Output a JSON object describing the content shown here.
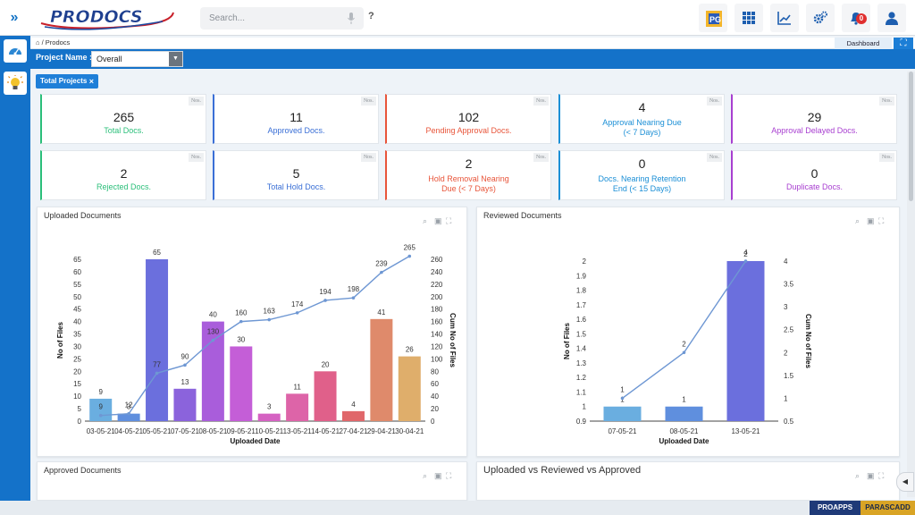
{
  "app": {
    "logo_text": "PRODOCS"
  },
  "search": {
    "placeholder": "Search..."
  },
  "help_label": "?",
  "notifications": {
    "count": "0"
  },
  "breadcrumb": {
    "text": "/ Prodocs"
  },
  "dashboard_label": "Dashboard",
  "project": {
    "label": "Project Name :",
    "selected": "Overall"
  },
  "filter_chip": {
    "label": "Total Projects",
    "close": "×"
  },
  "cards": [
    {
      "value": "265",
      "label": "Total Docs.",
      "unit": "Nos.",
      "color": "#2bbf7a"
    },
    {
      "value": "11",
      "label": "Approved Docs.",
      "unit": "Nos.",
      "color": "#3a6fd6"
    },
    {
      "value": "102",
      "label": "Pending Approval Docs.",
      "unit": "Nos.",
      "color": "#e8553a"
    },
    {
      "value": "4",
      "label_line1": "Approval Nearing Due",
      "label_line2": "(< 7 Days)",
      "unit": "Nos.",
      "color": "#1b8fd6"
    },
    {
      "value": "29",
      "label": "Approval Delayed Docs.",
      "unit": "Nos.",
      "color": "#a83fd0"
    },
    {
      "value": "2",
      "label": "Rejected Docs.",
      "unit": "Nos.",
      "color": "#2bbf7a"
    },
    {
      "value": "5",
      "label": "Total Hold Docs.",
      "unit": "Nos.",
      "color": "#3a6fd6"
    },
    {
      "value": "2",
      "label_line1": "Hold Removal Nearing",
      "label_line2": "Due (< 7 Days)",
      "unit": "Nos.",
      "color": "#e8553a"
    },
    {
      "value": "0",
      "label_line1": "Docs. Nearing Retention",
      "label_line2": "End (< 15 Days)",
      "unit": "Nos.",
      "color": "#1b8fd6"
    },
    {
      "value": "0",
      "label": "Duplicate Docs.",
      "unit": "Nos.",
      "color": "#a83fd0"
    }
  ],
  "panels": {
    "uploaded": "Uploaded Documents",
    "reviewed": "Reviewed Documents",
    "approved": "Approved Documents",
    "comparison": "Uploaded vs Reviewed vs Approved"
  },
  "footer": {
    "left": "PROAPPS",
    "right": "PARASCADD"
  },
  "chart_data": [
    {
      "type": "bar",
      "title": "Uploaded Documents",
      "xlabel": "Uploaded Date",
      "ylabel": "No of Files",
      "y2label": "Cum No of Files",
      "categories": [
        "03-05-21",
        "04-05-21",
        "05-05-21",
        "07-05-21",
        "08-05-21",
        "09-05-21",
        "10-05-21",
        "13-05-21",
        "14-05-21",
        "27-04-21",
        "29-04-21",
        "30-04-21"
      ],
      "values": [
        9,
        3,
        65,
        13,
        40,
        30,
        3,
        11,
        20,
        4,
        41,
        26
      ],
      "cumulative": [
        9,
        12,
        77,
        90,
        130,
        160,
        163,
        174,
        194,
        198,
        239,
        265
      ],
      "colors": [
        "#6aaee0",
        "#5f8fde",
        "#6b6fdd",
        "#8b63dc",
        "#a95ddb",
        "#c45ed7",
        "#d562c2",
        "#dd64a8",
        "#e0608a",
        "#e0676a",
        "#df8a6b",
        "#dfae6b"
      ],
      "ylim": [
        0,
        65
      ],
      "y_ticks": [
        0,
        5,
        10,
        15,
        20,
        25,
        30,
        35,
        40,
        45,
        50,
        55,
        60,
        65
      ],
      "y2lim": [
        0,
        260
      ],
      "y2_ticks": [
        0,
        20,
        40,
        60,
        80,
        100,
        120,
        140,
        160,
        180,
        200,
        220,
        240,
        260
      ]
    },
    {
      "type": "bar",
      "title": "Reviewed Documents",
      "xlabel": "Uploaded Date",
      "ylabel": "No of Files",
      "y2label": "Cum No of Files",
      "categories": [
        "07-05-21",
        "08-05-21",
        "13-05-21"
      ],
      "values": [
        1,
        1,
        2
      ],
      "cumulative": [
        1,
        2,
        4
      ],
      "colors": [
        "#6aaee0",
        "#5f8fde",
        "#6b6fdd"
      ],
      "ylim": [
        0.9,
        2
      ],
      "y_ticks": [
        0.9,
        1,
        1.1,
        1.2,
        1.3,
        1.4,
        1.5,
        1.6,
        1.7,
        1.8,
        1.9,
        2
      ],
      "y2lim": [
        0.5,
        4
      ],
      "y2_ticks": [
        0.5,
        1,
        1.5,
        2,
        2.5,
        3,
        3.5,
        4
      ]
    }
  ]
}
